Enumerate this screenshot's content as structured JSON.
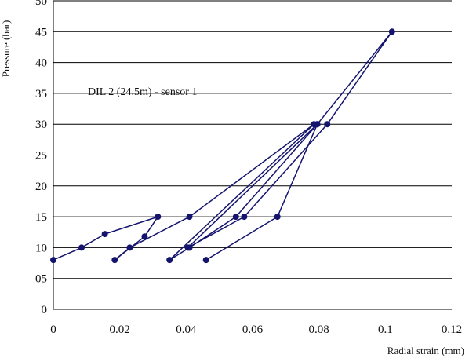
{
  "chart_data": {
    "type": "scatter",
    "title": "",
    "xlabel": "Radial strain (mm)",
    "ylabel": "Pressure (bar)",
    "annotation": "DIL 2 (24.5m) - sensor 1",
    "xlim": [
      0,
      0.12
    ],
    "ylim": [
      0,
      50
    ],
    "x_ticks": [
      "0",
      "0.02",
      "0.04",
      "0.06",
      "0.08",
      "0.1",
      "0.12"
    ],
    "x_tick_values": [
      0,
      0.02,
      0.04,
      0.06,
      0.08,
      0.1,
      0.12
    ],
    "y_ticks": [
      "0",
      "05",
      "10",
      "15",
      "20",
      "25",
      "30",
      "35",
      "40",
      "45",
      "50"
    ],
    "y_tick_values": [
      0,
      5,
      10,
      15,
      20,
      25,
      30,
      35,
      40,
      45,
      50
    ],
    "grid": "horizontal",
    "legend": "none",
    "series": [
      {
        "points": [
          [
            0.0,
            8
          ],
          [
            0.0085,
            10
          ],
          [
            0.0155,
            12.2
          ],
          [
            0.0315,
            15
          ],
          [
            0.0275,
            11.8
          ],
          [
            0.0185,
            8
          ],
          [
            0.023,
            10
          ],
          [
            0.041,
            15
          ],
          [
            0.0785,
            30
          ],
          [
            0.035,
            8
          ],
          [
            0.041,
            10
          ],
          [
            0.055,
            15
          ],
          [
            0.0795,
            30
          ],
          [
            0.0405,
            10
          ],
          [
            0.0575,
            15
          ],
          [
            0.0825,
            30
          ],
          [
            0.102,
            45
          ],
          [
            0.0795,
            30
          ],
          [
            0.0675,
            15
          ],
          [
            0.046,
            8
          ]
        ]
      }
    ],
    "colors": {
      "series": "#14146e",
      "grid": "#000000",
      "axis": "#000000"
    }
  }
}
